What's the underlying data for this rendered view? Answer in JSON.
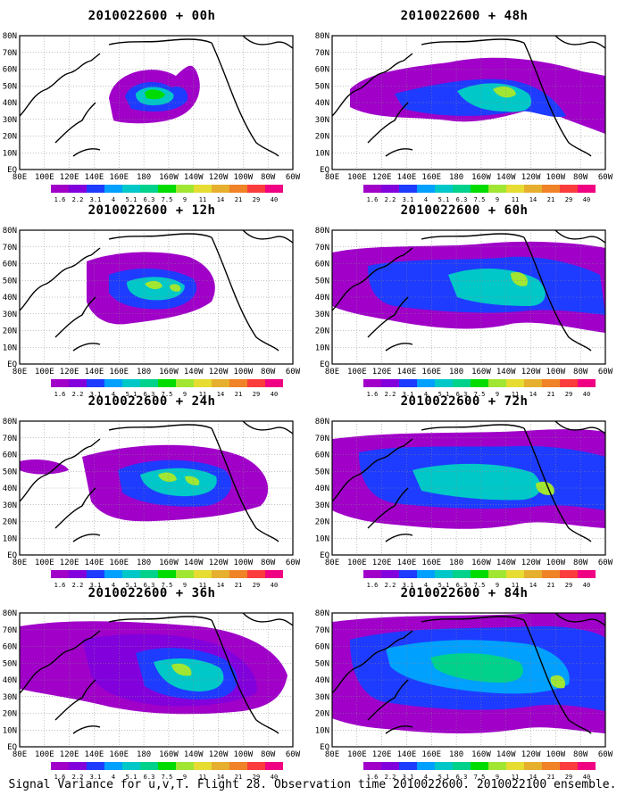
{
  "panels": [
    {
      "id": "p00",
      "title": "2010022600 + 00h"
    },
    {
      "id": "p48",
      "title": "2010022600 + 48h"
    },
    {
      "id": "p12",
      "title": "2010022600 + 12h"
    },
    {
      "id": "p60",
      "title": "2010022600 + 60h"
    },
    {
      "id": "p24",
      "title": "2010022600 + 24h"
    },
    {
      "id": "p72",
      "title": "2010022600 + 72h"
    },
    {
      "id": "p36",
      "title": "2010022600 + 36h"
    },
    {
      "id": "p84",
      "title": "2010022600 + 84h"
    }
  ],
  "axes": {
    "x_ticks": [
      "80E",
      "100E",
      "120E",
      "140E",
      "160E",
      "180",
      "160W",
      "140W",
      "120W",
      "100W",
      "80W",
      "60W"
    ],
    "y_ticks": [
      "80N",
      "70N",
      "60N",
      "50N",
      "40N",
      "30N",
      "20N",
      "10N",
      "EQ"
    ],
    "grid": true
  },
  "colorbar": {
    "levels": [
      "1.6",
      "2.2",
      "3.1",
      "4",
      "5.1",
      "6.3",
      "7.5",
      "9",
      "11",
      "14",
      "21",
      "29",
      "40"
    ],
    "colors": [
      "#a000c8",
      "#8200dc",
      "#1e3cff",
      "#00a0ff",
      "#00c8c8",
      "#00d28c",
      "#00dc00",
      "#a0e632",
      "#e6dc32",
      "#e6af2d",
      "#f08228",
      "#fa3c3c",
      "#f00082"
    ]
  },
  "footer": "Signal Variance for u,v,T. Flight 28. Observation time 2010022600. 2010022100 ensemble."
}
